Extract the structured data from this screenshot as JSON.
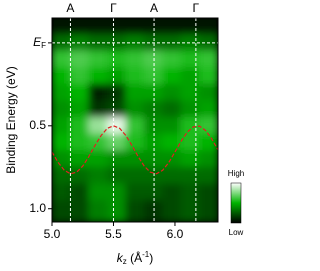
{
  "chart_data": {
    "type": "heatmap",
    "ylabel": "Binding Energy (eV)",
    "xlabel_parts": [
      {
        "text": "k",
        "style": "italic"
      },
      {
        "text": "z",
        "style": "sub"
      },
      {
        "text": " (Å"
      },
      {
        "text": "-1",
        "style": "sup"
      },
      {
        "text": ")"
      }
    ],
    "xlim": [
      5.0,
      6.35
    ],
    "ylim": [
      -0.15,
      1.08
    ],
    "y_inverted": true,
    "xticks": [
      {
        "value": 5,
        "label": "5.0"
      },
      5.5,
      {
        "value": 6,
        "label": "6.0"
      }
    ],
    "yticks": [
      {
        "value": 0,
        "label": "EF"
      },
      0.5,
      {
        "value": 1,
        "label": "1.0"
      }
    ],
    "fermi_line": {
      "value": 0,
      "color": "#ffffff"
    },
    "symmetry_points": {
      "x": [
        5.15,
        5.5,
        5.83,
        6.17
      ],
      "labels": [
        "A",
        "Γ",
        "A",
        "Γ"
      ],
      "color": "#ffffff"
    },
    "heatmap": {
      "xbins": [
        5.0,
        5.15,
        5.3,
        5.45,
        5.6,
        5.75,
        5.9,
        6.05,
        6.2,
        6.35
      ],
      "ybins": [
        -0.15,
        -0.05,
        0.05,
        0.15,
        0.25,
        0.35,
        0.45,
        0.55,
        0.65,
        0.75,
        0.85,
        0.95,
        1.08
      ],
      "z": [
        [
          5,
          5,
          5,
          5,
          5,
          5,
          5,
          5,
          5
        ],
        [
          30,
          35,
          30,
          30,
          35,
          30,
          30,
          35,
          30
        ],
        [
          60,
          65,
          60,
          55,
          60,
          65,
          60,
          55,
          60
        ],
        [
          50,
          60,
          50,
          45,
          55,
          60,
          50,
          45,
          55
        ],
        [
          45,
          50,
          10,
          15,
          45,
          45,
          40,
          45,
          40
        ],
        [
          40,
          45,
          15,
          20,
          40,
          35,
          30,
          40,
          45
        ],
        [
          45,
          55,
          80,
          95,
          60,
          40,
          40,
          55,
          60
        ],
        [
          50,
          55,
          60,
          70,
          55,
          45,
          50,
          55,
          50
        ],
        [
          40,
          45,
          45,
          40,
          40,
          40,
          40,
          45,
          40
        ],
        [
          30,
          30,
          35,
          30,
          30,
          30,
          30,
          30,
          30
        ],
        [
          25,
          20,
          40,
          40,
          25,
          25,
          20,
          25,
          20
        ],
        [
          20,
          20,
          35,
          40,
          20,
          15,
          20,
          25,
          20
        ]
      ],
      "zlim": [
        0,
        100
      ],
      "colorscale": [
        {
          "stop": 0,
          "color": "#000000"
        },
        {
          "stop": 0.5,
          "color": "#00b400"
        },
        {
          "stop": 1,
          "color": "#ffffff"
        }
      ]
    },
    "colorbar": {
      "high": "High",
      "low": "Low"
    },
    "curve": {
      "color": "#e02020",
      "x": [
        5.0,
        5.05,
        5.1,
        5.15,
        5.2,
        5.25,
        5.3,
        5.35,
        5.4,
        5.45,
        5.5,
        5.55,
        5.6,
        5.65,
        5.7,
        5.75,
        5.8,
        5.85,
        5.9,
        5.95,
        6.0,
        6.05,
        6.1,
        6.15,
        6.2,
        6.25,
        6.3,
        6.35
      ],
      "y": [
        0.658,
        0.721,
        0.768,
        0.789,
        0.78,
        0.743,
        0.685,
        0.618,
        0.558,
        0.515,
        0.5,
        0.515,
        0.558,
        0.618,
        0.685,
        0.743,
        0.78,
        0.789,
        0.768,
        0.721,
        0.658,
        0.593,
        0.538,
        0.506,
        0.502,
        0.529,
        0.58,
        0.645
      ]
    }
  }
}
